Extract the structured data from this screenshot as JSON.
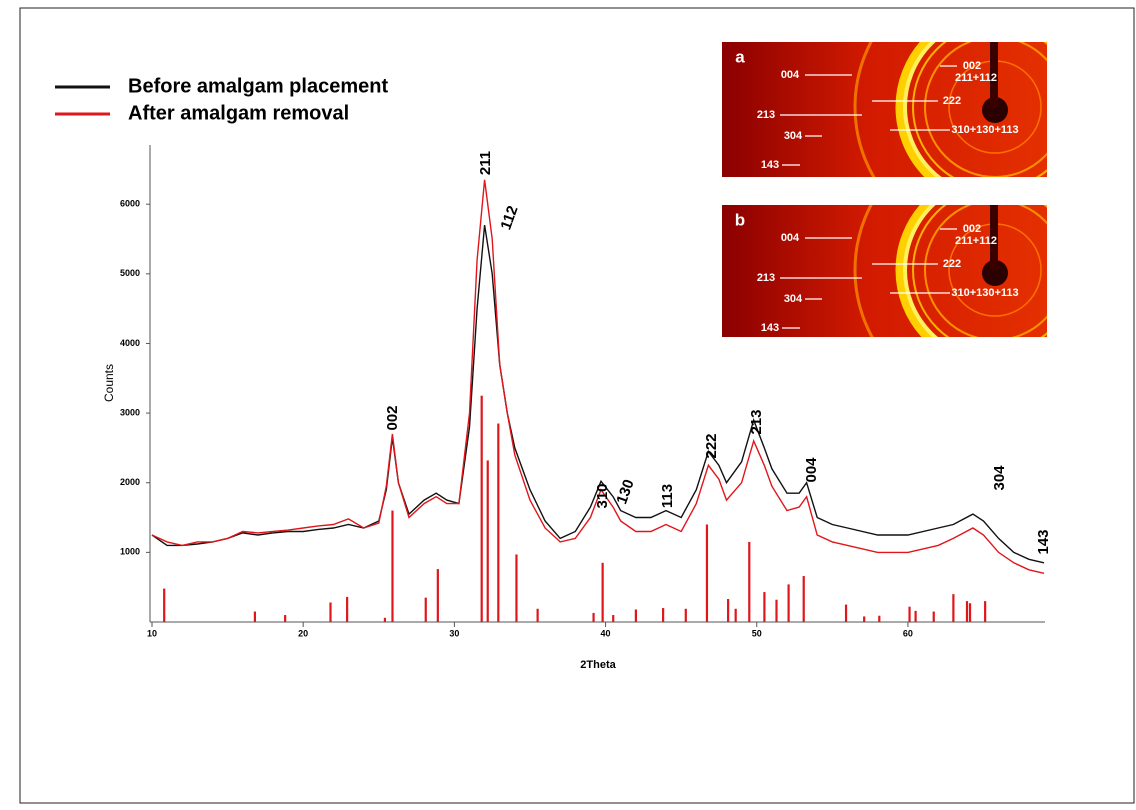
{
  "chart_data": {
    "type": "line",
    "x_label": "2Theta",
    "y_label": "Counts",
    "xlim": [
      10,
      69
    ],
    "ylim": [
      0,
      6850
    ],
    "xticks": [
      10,
      20,
      30,
      40,
      50,
      60
    ],
    "yticks": [
      1000,
      2000,
      3000,
      4000,
      5000,
      6000
    ],
    "x": [
      10,
      11,
      12,
      13,
      14,
      15,
      16,
      17,
      18,
      19,
      20,
      21,
      22,
      23,
      24,
      25,
      25.5,
      25.9,
      26.3,
      27,
      28,
      28.8,
      29.5,
      30.3,
      31,
      31.5,
      32,
      32.5,
      33,
      33.5,
      34,
      35,
      36,
      37,
      38,
      39,
      39.7,
      40.5,
      41,
      42,
      43,
      44,
      45,
      46,
      46.8,
      47.5,
      48,
      49,
      49.8,
      50.5,
      51,
      52,
      52.8,
      53.3,
      54,
      55,
      56,
      58,
      60,
      62,
      63,
      64.3,
      65,
      66,
      67,
      68,
      69
    ],
    "series": [
      {
        "name": "Before amalgam placement",
        "color": "#111111",
        "values": [
          1250,
          1100,
          1100,
          1120,
          1150,
          1200,
          1280,
          1250,
          1280,
          1300,
          1300,
          1330,
          1350,
          1400,
          1350,
          1450,
          1900,
          2650,
          2000,
          1550,
          1750,
          1850,
          1750,
          1700,
          2800,
          4500,
          5700,
          5000,
          3700,
          3000,
          2500,
          1900,
          1450,
          1200,
          1300,
          1650,
          2020,
          1800,
          1600,
          1500,
          1500,
          1600,
          1500,
          1900,
          2450,
          2250,
          2000,
          2300,
          2900,
          2500,
          2200,
          1850,
          1850,
          2000,
          1500,
          1400,
          1350,
          1250,
          1250,
          1350,
          1400,
          1550,
          1450,
          1200,
          1000,
          900,
          850
        ]
      },
      {
        "name": "After amalgam removal",
        "color": "#e0161b",
        "values": [
          1250,
          1150,
          1100,
          1150,
          1150,
          1200,
          1300,
          1280,
          1300,
          1320,
          1350,
          1380,
          1400,
          1480,
          1350,
          1420,
          1950,
          2700,
          2000,
          1500,
          1700,
          1800,
          1700,
          1700,
          3000,
          5200,
          6350,
          5500,
          3700,
          3000,
          2400,
          1750,
          1350,
          1150,
          1200,
          1500,
          1900,
          1650,
          1450,
          1300,
          1300,
          1400,
          1300,
          1700,
          2250,
          2050,
          1750,
          2000,
          2600,
          2250,
          1950,
          1600,
          1650,
          1800,
          1250,
          1150,
          1100,
          1000,
          1000,
          1100,
          1200,
          1350,
          1250,
          1000,
          850,
          750,
          700
        ]
      }
    ],
    "reference_peaks": {
      "color": "#e0161b",
      "x": [
        10.8,
        16.8,
        18.8,
        21.8,
        22.9,
        25.4,
        25.9,
        28.1,
        28.9,
        31.8,
        32.2,
        32.9,
        34.1,
        35.5,
        39.2,
        39.8,
        40.5,
        42,
        43.8,
        45.3,
        46.7,
        48.1,
        48.6,
        49.5,
        50.5,
        51.3,
        52.1,
        53.1,
        55.9,
        57.1,
        58.1,
        60.1,
        60.5,
        61.7,
        63,
        63.9,
        64.1,
        65.1
      ],
      "values": [
        480,
        150,
        100,
        280,
        360,
        60,
        1600,
        350,
        760,
        3250,
        2320,
        2850,
        970,
        190,
        130,
        850,
        100,
        180,
        200,
        190,
        1400,
        330,
        190,
        1150,
        430,
        320,
        540,
        660,
        250,
        80,
        90,
        220,
        160,
        150,
        400,
        300,
        270,
        300
      ]
    },
    "peak_labels": [
      "002",
      "211",
      "112",
      "310",
      "130",
      "113",
      "222",
      "213",
      "004",
      "304",
      "143"
    ],
    "insets": [
      {
        "panel": "a",
        "labels": [
          "004",
          "002",
          "211+112",
          "222",
          "213",
          "304",
          "310+130+113",
          "143"
        ]
      },
      {
        "panel": "b",
        "labels": [
          "004",
          "002",
          "211+112",
          "222",
          "213",
          "304",
          "310+130+113",
          "143"
        ]
      }
    ]
  }
}
